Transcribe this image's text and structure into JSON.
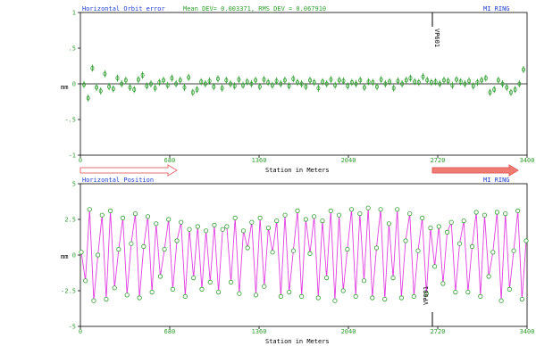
{
  "chart_data": [
    {
      "type": "scatter",
      "title": "Horizontal Orbit error",
      "stats": "Mean_DEV= 0.003371, RMS_DEV = 0.067910",
      "ring_label": "MI_RING",
      "xlabel": "Station in Meters",
      "ylabel": "mm",
      "xlim": [
        0,
        3400
      ],
      "ylim": [
        -1,
        1
      ],
      "x_ticks": [
        "0",
        "680",
        "1360",
        "2040",
        "2720",
        "3400"
      ],
      "y_ticks": [
        "1",
        ".5",
        "0",
        "-.5",
        "-1"
      ],
      "marker_label": "VP601",
      "marker_x": 2750,
      "values": [
        -0.01,
        -0.2,
        0.22,
        -0.05,
        -0.1,
        0.14,
        -0.04,
        -0.07,
        0.08,
        0.0,
        0.05,
        -0.05,
        -0.08,
        0.06,
        0.12,
        -0.03,
        0.0,
        -0.06,
        0.02,
        0.05,
        -0.02,
        0.08,
        0.0,
        0.05,
        -0.05,
        0.09,
        -0.12,
        -0.08,
        0.03,
        0.0,
        0.04,
        -0.04,
        0.07,
        -0.06,
        0.05,
        0.0,
        -0.03,
        0.06,
        -0.02,
        0.03,
        0.0,
        0.05,
        -0.04,
        0.06,
        0.02,
        -0.02,
        0.04,
        0.0,
        0.05,
        -0.03,
        0.07,
        0.02,
        0.0,
        -0.04,
        0.05,
        0.02,
        -0.06,
        0.03,
        0.0,
        0.06,
        -0.02,
        0.05,
        0.04,
        -0.03,
        0.02,
        0.0,
        0.05,
        -0.05,
        0.03,
        0.02,
        -0.04,
        0.06,
        0.0,
        0.03,
        -0.06,
        0.04,
        0.0,
        0.05,
        0.08,
        0.03,
        0.02,
        0.1,
        0.05,
        0.02,
        0.03,
        0.0,
        0.05,
        0.04,
        -0.02,
        0.06,
        0.03,
        0.0,
        0.04,
        -0.03,
        0.02,
        0.05,
        0.08,
        -0.12,
        -0.08,
        0.05,
        0.0,
        -0.05,
        -0.12,
        -0.08,
        0.0,
        0.2
      ],
      "error_bar": 0.05
    },
    {
      "type": "line",
      "title": "Horizontal Position",
      "ring_label": "MI_RING",
      "xlabel": "Station in Meters",
      "ylabel": "mm",
      "xlim": [
        0,
        3400
      ],
      "ylim": [
        -5,
        5
      ],
      "x_ticks": [
        "0",
        "680",
        "1360",
        "2040",
        "2720",
        "3400"
      ],
      "y_ticks": [
        "5",
        "2.5",
        "0",
        "-2.5",
        "-5"
      ],
      "marker_label": "VP601",
      "marker_x": 2750,
      "values": [
        0.2,
        -1.8,
        3.2,
        -3.2,
        0.0,
        2.8,
        -3.1,
        3.1,
        -2.3,
        0.4,
        2.6,
        -2.8,
        0.8,
        2.9,
        -3.0,
        0.6,
        2.7,
        -2.6,
        2.2,
        -1.5,
        0.4,
        2.5,
        -2.4,
        1.0,
        2.3,
        -2.9,
        1.8,
        -1.6,
        2.0,
        -2.4,
        1.7,
        -1.9,
        2.1,
        -2.6,
        1.8,
        2.0,
        -1.9,
        2.6,
        -2.7,
        1.7,
        0.5,
        2.3,
        -2.8,
        2.6,
        -2.2,
        1.9,
        0.2,
        2.4,
        -2.9,
        2.8,
        -2.6,
        0.3,
        3.1,
        -2.9,
        2.5,
        0.1,
        2.7,
        -3.0,
        2.4,
        -1.6,
        3.1,
        -3.2,
        2.8,
        -2.5,
        0.4,
        3.2,
        -2.9,
        2.9,
        -1.8,
        3.3,
        -3.0,
        0.5,
        3.2,
        -3.1,
        2.2,
        -1.6,
        3.2,
        -3.0,
        1.0,
        2.9,
        -2.9,
        0.3,
        2.6,
        -2.7,
        1.9,
        -0.8,
        2.0,
        -2.0,
        1.6,
        2.3,
        -2.6,
        0.8,
        2.4,
        -2.6,
        0.6,
        3.0,
        -2.9,
        2.8,
        -1.5,
        0.2,
        3.0,
        -3.2,
        2.9,
        -2.4,
        0.3,
        3.1,
        -3.1,
        1.0
      ]
    }
  ]
}
